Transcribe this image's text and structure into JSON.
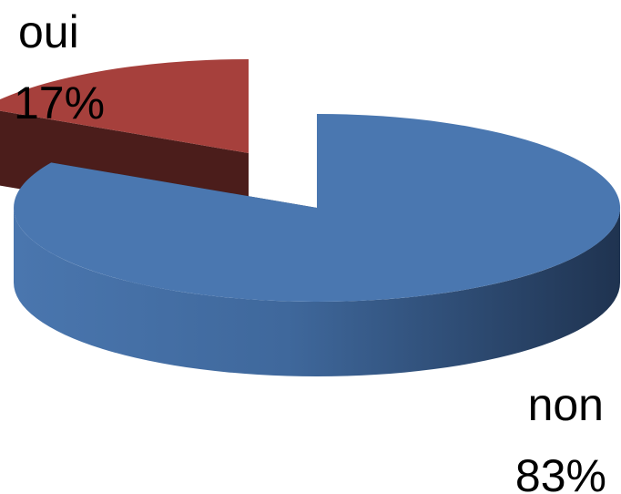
{
  "chart_data": {
    "type": "pie",
    "style": "3d-exploded",
    "title": "",
    "legend": "none",
    "slices": [
      {
        "label": "oui",
        "value": 17,
        "percent_label": "17%",
        "color": "#a6403c"
      },
      {
        "label": "non",
        "value": 83,
        "percent_label": "83%",
        "color": "#4a77b0"
      }
    ]
  }
}
